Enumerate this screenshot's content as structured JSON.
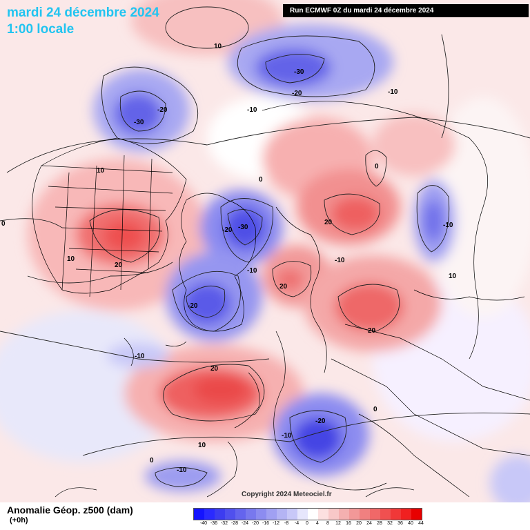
{
  "header": {
    "date_title": "mardi 24 décembre 2024",
    "time_title": "1:00 locale",
    "run_info": "Run ECMWF 0Z du mardi 24 décembre 2024"
  },
  "footer": {
    "caption": "Anomalie Géop. z500 (dam)",
    "lead": "(+0h)",
    "copyright": "Copyright 2024 Meteociel.fr"
  },
  "scale": {
    "ticks": [
      "-40",
      "-36",
      "-32",
      "-28",
      "-24",
      "-20",
      "-16",
      "-12",
      "-8",
      "-4",
      "0",
      "4",
      "8",
      "12",
      "16",
      "20",
      "24",
      "28",
      "32",
      "36",
      "40",
      "44"
    ],
    "colors": [
      "#1414ff",
      "#2a2aff",
      "#3c3cf0",
      "#5050ee",
      "#6464ee",
      "#7878ee",
      "#8c8cf0",
      "#a0a0f2",
      "#b4b4f4",
      "#c8c8f8",
      "#e6e6fc",
      "#ffffff",
      "#fce0e0",
      "#f8c8c8",
      "#f4b0b0",
      "#f29898",
      "#f08080",
      "#f06868",
      "#f05050",
      "#f03838",
      "#f02020",
      "#e80000"
    ]
  },
  "contour_labels": [
    {
      "text": "10"
    },
    {
      "text": "-30"
    },
    {
      "text": "-20"
    },
    {
      "text": "-10"
    },
    {
      "text": "-20"
    },
    {
      "text": "-30"
    },
    {
      "text": "-10"
    },
    {
      "text": "10"
    },
    {
      "text": "0"
    },
    {
      "text": "0"
    },
    {
      "text": "20"
    },
    {
      "text": "-10"
    },
    {
      "text": "-30"
    },
    {
      "text": "-20"
    },
    {
      "text": "-10"
    },
    {
      "text": "-20"
    },
    {
      "text": "20"
    },
    {
      "text": "10"
    },
    {
      "text": "20"
    },
    {
      "text": "20"
    },
    {
      "text": "-10"
    },
    {
      "text": "10"
    },
    {
      "text": "0"
    },
    {
      "text": "-10"
    },
    {
      "text": "20"
    },
    {
      "text": "-10"
    },
    {
      "text": "-20"
    },
    {
      "text": "0"
    },
    {
      "text": "10"
    },
    {
      "text": "0"
    },
    {
      "text": "-10"
    },
    {
      "text": "20"
    },
    {
      "text": "0"
    },
    {
      "text": "-10"
    },
    {
      "text": "10"
    }
  ]
}
